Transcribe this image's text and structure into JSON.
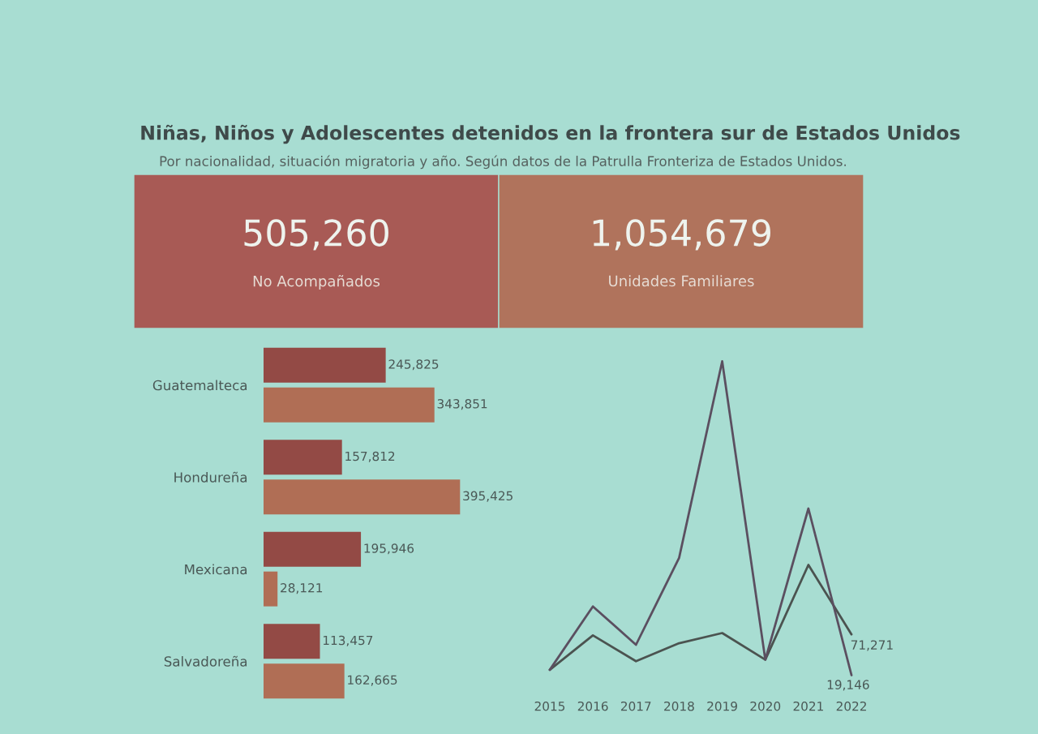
{
  "chart_data": [
    {
      "type": "other",
      "title": "Niñas, Niños y Adolescentes detenidos en la frontera sur de Estados Unidos",
      "subtitle": "Por nacionalidad, situación migratoria y año. Según datos de la Patrulla Fronteriza de Estados Unidos.",
      "annotations": [
        "505,260",
        "No Acompañados",
        "1,054,679",
        "Unidades Familiares"
      ],
      "colors": [
        "#a85a55",
        "#b0735c"
      ]
    },
    {
      "type": "bar",
      "orientation": "horizontal",
      "categories": [
        "Guatemalteca",
        "Hondureña",
        "Mexicana",
        "Salvadoreña"
      ],
      "series": [
        {
          "color": "#934a45",
          "values": [
            245825,
            157812,
            195946,
            113457
          ],
          "value_labels": [
            "245,825",
            "157,812",
            "195,946",
            "113,457"
          ]
        },
        {
          "color": "#b06e55",
          "values": [
            343851,
            395425,
            28121,
            162665
          ],
          "value_labels": [
            "343,851",
            "395,425",
            "28,121",
            "162,665"
          ]
        }
      ],
      "tick_labels": "y"
    },
    {
      "type": "line",
      "categories": [
        "2015",
        "2016",
        "2017",
        "2018",
        "2019",
        "2020",
        "2021",
        "2022"
      ],
      "series": [
        {
          "color": "#4b5350",
          "values": [
            26000,
            70000,
            37000,
            60000,
            73000,
            39000,
            160000,
            71271
          ],
          "value_labels": [
            null,
            null,
            null,
            null,
            null,
            null,
            null,
            "71,271"
          ]
        },
        {
          "color": "#5b4f60",
          "values": [
            26000,
            107000,
            58000,
            169000,
            420000,
            39000,
            232000,
            19146
          ],
          "value_labels": [
            null,
            null,
            null,
            null,
            null,
            null,
            null,
            "19,146"
          ]
        }
      ],
      "tick_labels": "x"
    }
  ]
}
